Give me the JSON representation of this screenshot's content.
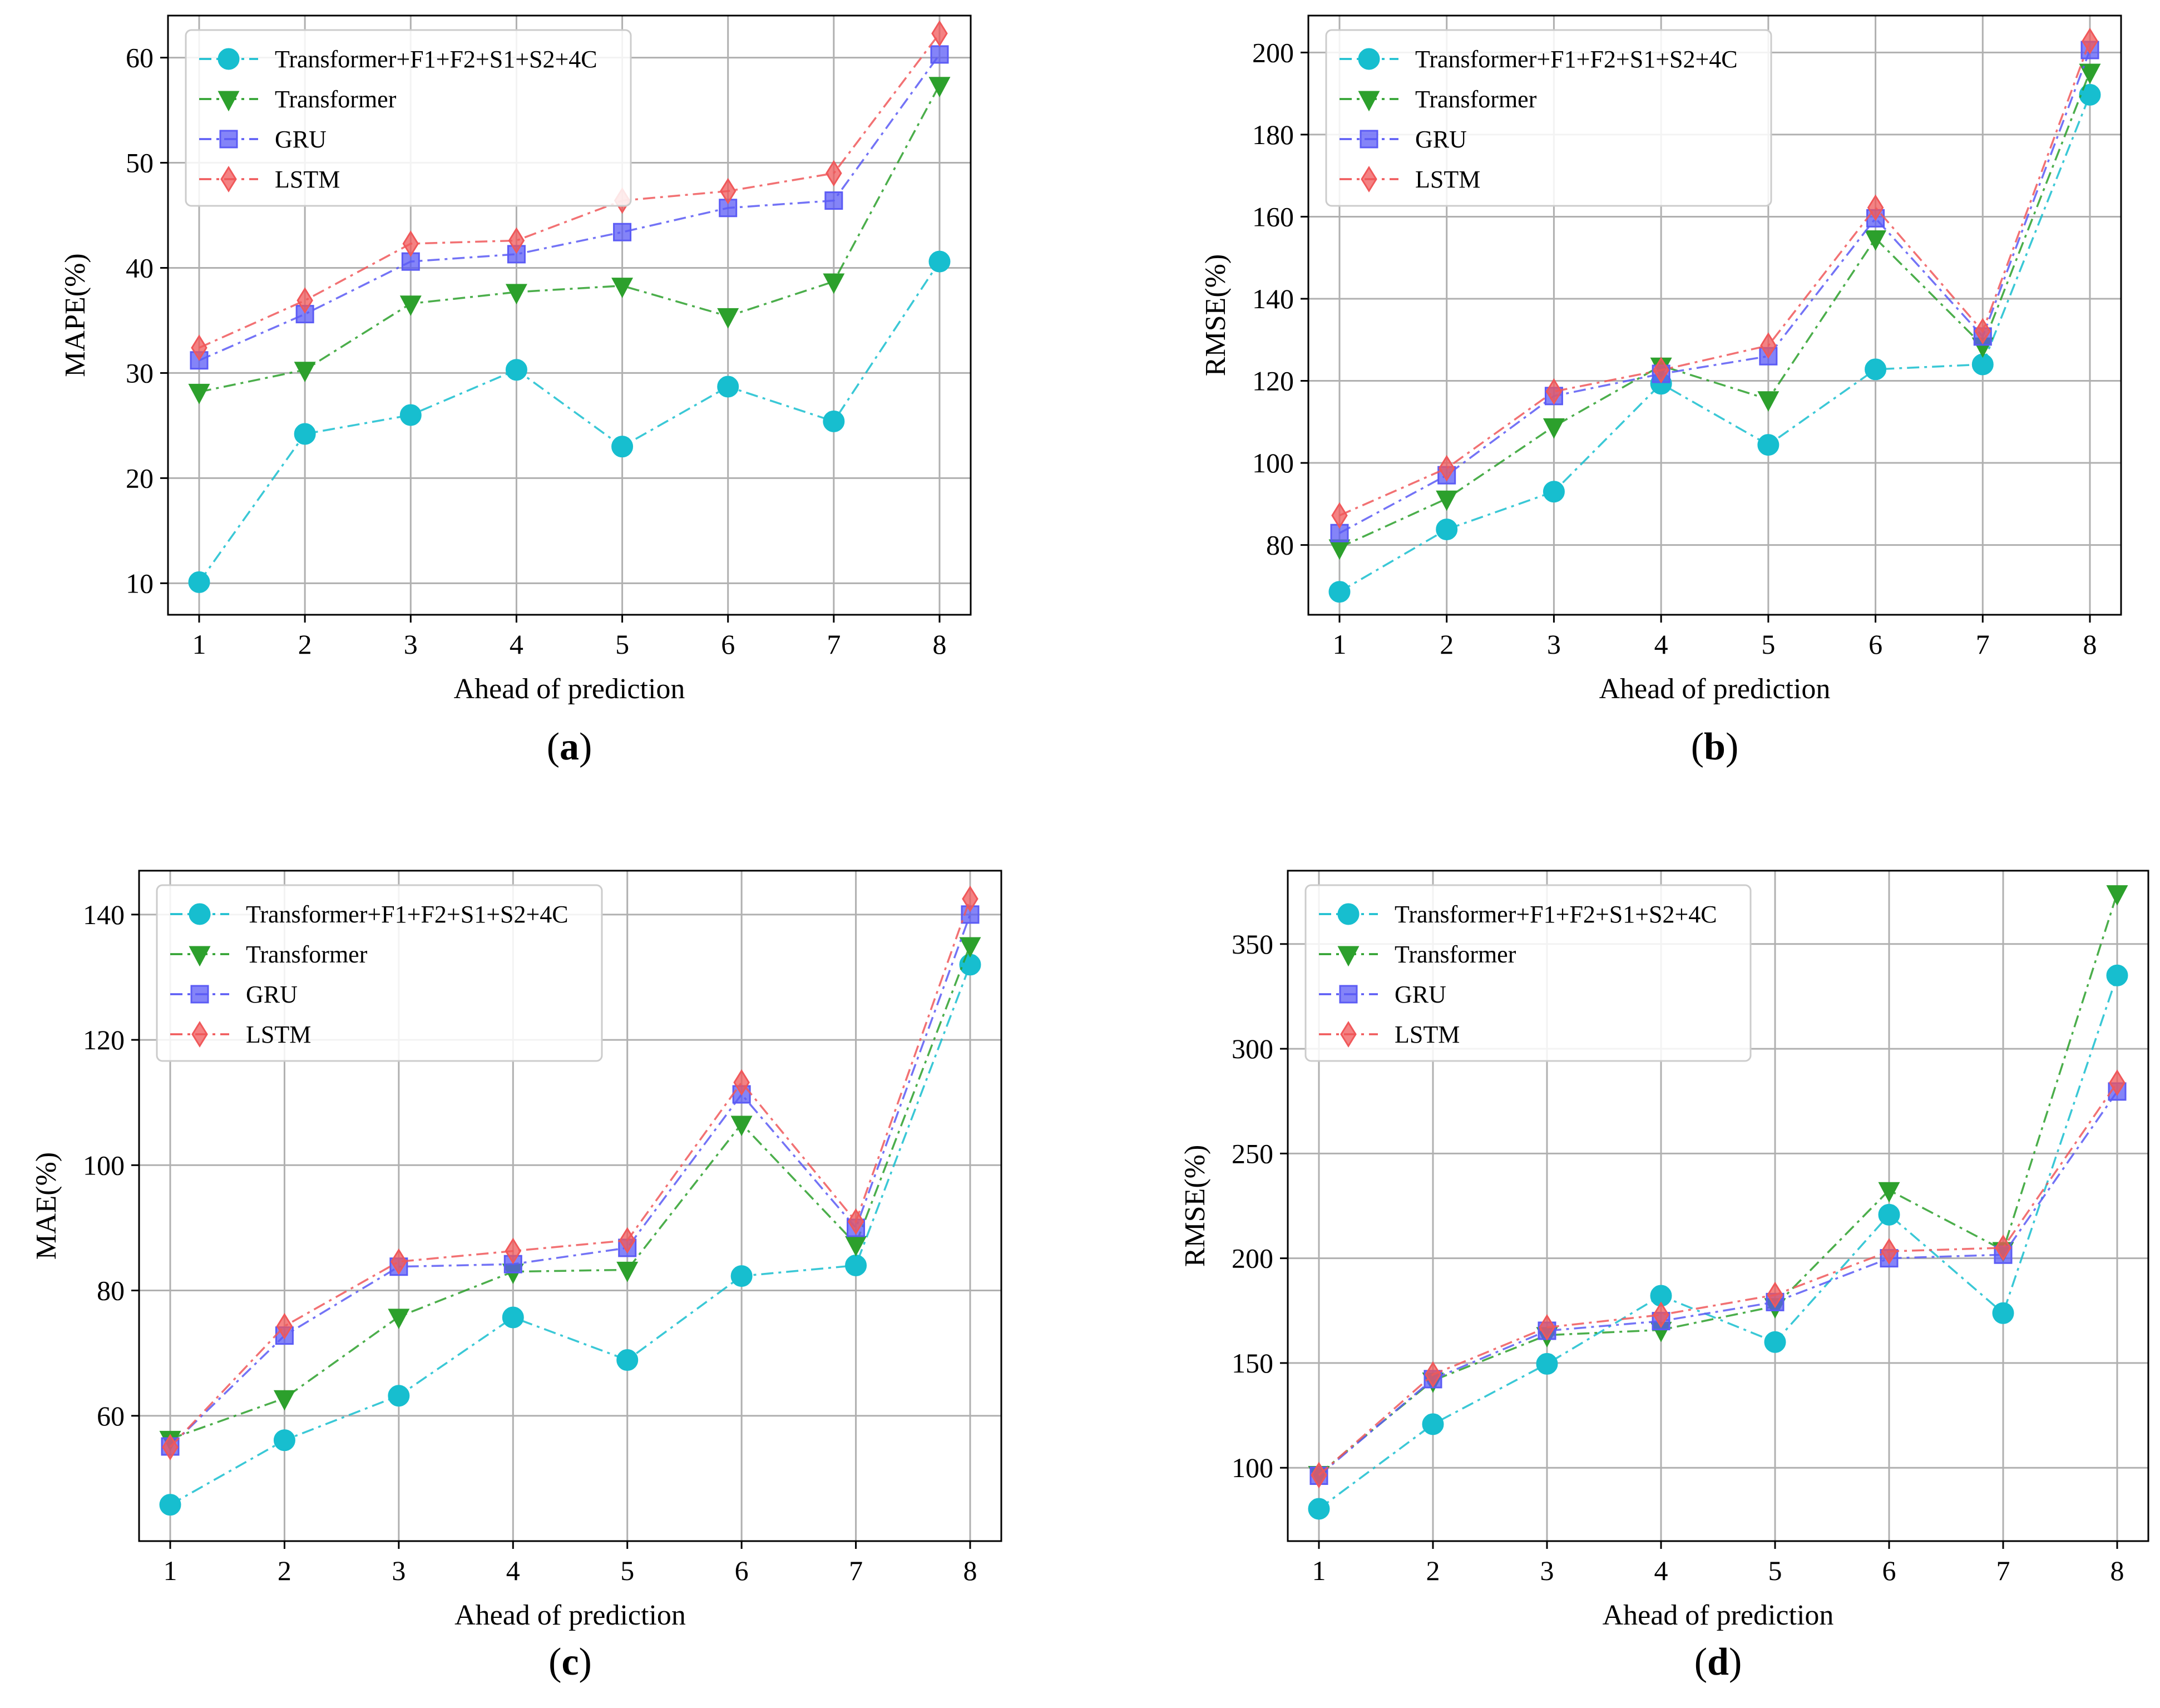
{
  "colors": {
    "Transformer+F1+F2+S1+S2+4C": "#17becf",
    "Transformer": "#2ca02c",
    "GRU": "#5b5bf5",
    "LSTM": "#f0585a"
  },
  "markers": {
    "Transformer+F1+F2+S1+S2+4C": "circle",
    "Transformer": "triangle-down",
    "GRU": "square",
    "LSTM": "diamond"
  },
  "chart_data": [
    {
      "panel": "(a)",
      "type": "line",
      "xlabel": "Ahead of prediction",
      "ylabel": "MAPE(%)",
      "x": [
        1,
        2,
        3,
        4,
        5,
        6,
        7,
        8
      ],
      "ylim": [
        7,
        64
      ],
      "yticks": [
        10,
        20,
        30,
        40,
        50,
        60
      ],
      "grid": true,
      "legend": "top-left",
      "series": [
        {
          "name": "Transformer+F1+F2+S1+S2+4C",
          "values": [
            10.1,
            24.2,
            26.0,
            30.3,
            23.0,
            28.7,
            25.4,
            40.6
          ]
        },
        {
          "name": "Transformer",
          "values": [
            28.2,
            30.3,
            36.6,
            37.7,
            38.3,
            35.4,
            38.7,
            57.4
          ]
        },
        {
          "name": "GRU",
          "values": [
            31.2,
            35.6,
            40.6,
            41.3,
            43.4,
            45.7,
            46.4,
            60.3
          ]
        },
        {
          "name": "LSTM",
          "values": [
            32.4,
            36.9,
            42.3,
            42.6,
            46.4,
            47.3,
            49.0,
            62.3
          ]
        }
      ]
    },
    {
      "panel": "(b)",
      "type": "line",
      "xlabel": "Ahead of prediction",
      "ylabel": "RMSE(%)",
      "x": [
        1,
        2,
        3,
        4,
        5,
        6,
        7,
        8
      ],
      "ylim": [
        63,
        209
      ],
      "yticks": [
        80,
        100,
        120,
        140,
        160,
        180,
        200
      ],
      "grid": true,
      "legend": "top-left",
      "series": [
        {
          "name": "Transformer+F1+F2+S1+S2+4C",
          "values": [
            68.6,
            83.8,
            93.0,
            119.3,
            104.4,
            122.8,
            124.0,
            189.7
          ]
        },
        {
          "name": "Transformer",
          "values": [
            79.4,
            91.3,
            108.9,
            123.7,
            115.5,
            154.7,
            128.6,
            195.3
          ]
        },
        {
          "name": "GRU",
          "values": [
            82.9,
            97.0,
            116.3,
            121.7,
            126.0,
            159.6,
            130.8,
            200.6
          ]
        },
        {
          "name": "LSTM",
          "values": [
            87.2,
            98.7,
            117.4,
            122.6,
            128.6,
            162.2,
            132.1,
            202.8
          ]
        }
      ]
    },
    {
      "panel": "(c)",
      "type": "line",
      "xlabel": "Ahead of prediction",
      "ylabel": "MAE(%)",
      "x": [
        1,
        2,
        3,
        4,
        5,
        6,
        7,
        8
      ],
      "ylim": [
        40,
        147
      ],
      "yticks": [
        60,
        80,
        100,
        120,
        140
      ],
      "grid": true,
      "legend": "top-left",
      "series": [
        {
          "name": "Transformer+F1+F2+S1+S2+4C",
          "values": [
            45.8,
            56.1,
            63.2,
            75.7,
            68.9,
            82.3,
            84.0,
            132.0
          ]
        },
        {
          "name": "Transformer",
          "values": [
            56.3,
            62.8,
            75.8,
            83.0,
            83.3,
            106.6,
            87.4,
            135.1
          ]
        },
        {
          "name": "GRU",
          "values": [
            55.1,
            72.8,
            83.8,
            84.2,
            86.8,
            111.3,
            90.0,
            140.0
          ]
        },
        {
          "name": "LSTM",
          "values": [
            55.0,
            74.3,
            84.6,
            86.3,
            88.0,
            113.2,
            91.0,
            142.5
          ]
        }
      ]
    },
    {
      "panel": "(d)",
      "type": "line",
      "xlabel": "Ahead of prediction",
      "ylabel": "RMSE(%)",
      "x": [
        1,
        2,
        3,
        4,
        5,
        6,
        7,
        8
      ],
      "ylim": [
        65,
        385
      ],
      "yticks": [
        100,
        150,
        200,
        250,
        300,
        350
      ],
      "grid": true,
      "legend": "top-left",
      "series": [
        {
          "name": "Transformer+F1+F2+S1+S2+4C",
          "values": [
            80.4,
            120.8,
            149.6,
            182.1,
            160.0,
            220.8,
            173.8,
            335.0
          ]
        },
        {
          "name": "Transformer",
          "values": [
            97.0,
            141.6,
            163.3,
            165.8,
            177.1,
            232.5,
            203.9,
            374.2
          ]
        },
        {
          "name": "GRU",
          "values": [
            96.2,
            142.3,
            165.4,
            170.0,
            179.1,
            200.0,
            201.7,
            279.6
          ]
        },
        {
          "name": "LSTM",
          "values": [
            96.5,
            144.5,
            167.0,
            173.0,
            182.5,
            203.3,
            205.0,
            283.8
          ]
        }
      ]
    }
  ]
}
